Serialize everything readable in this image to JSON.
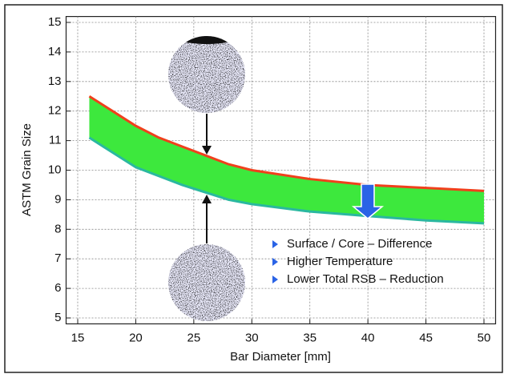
{
  "chart_data": {
    "type": "band",
    "x_label": "Bar Diameter [mm]",
    "y_label": "ASTM Grain Size",
    "x": [
      16,
      18,
      20,
      22,
      24,
      26,
      28,
      30,
      35,
      40,
      45,
      50
    ],
    "series": [
      {
        "color": "#f0401c",
        "values": [
          12.5,
          12.0,
          11.5,
          11.1,
          10.8,
          10.5,
          10.2,
          10.0,
          9.7,
          9.5,
          9.4,
          9.3
        ]
      },
      {
        "color": "#2ab8a0",
        "values": [
          11.1,
          10.6,
          10.1,
          9.8,
          9.5,
          9.25,
          9.0,
          8.85,
          8.6,
          8.45,
          8.3,
          8.2
        ]
      }
    ],
    "band_color": "#3de83d",
    "xlim": [
      14,
      51
    ],
    "xticks": [
      15,
      20,
      25,
      30,
      35,
      40,
      45,
      50
    ],
    "ylim": [
      4.8,
      15.2
    ],
    "yticks": [
      5,
      6,
      7,
      8,
      9,
      10,
      11,
      12,
      13,
      14,
      15
    ],
    "grid": true,
    "notes": [
      "Surface / Core – Difference",
      "Higher Temperature",
      "Lower Total RSB – Reduction"
    ],
    "note_marker_color": "#2a63e6"
  }
}
